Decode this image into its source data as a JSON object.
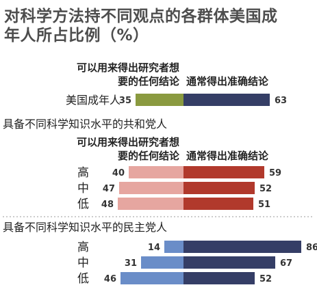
{
  "chart_data": {
    "type": "bar",
    "title_lines": [
      "对科学方法持不同观点的各群体美国成",
      "年人所占比例（%）"
    ],
    "headers": {
      "left_lines": [
        "可以用来得出研究者想",
        "要的任何结论"
      ],
      "right": "通常得出准确结论"
    },
    "groups": [
      {
        "label": "",
        "categories": [
          "美国成年人"
        ],
        "series": [
          {
            "name": "可以用来得出研究者想要的任何结论",
            "values": [
              35
            ]
          },
          {
            "name": "通常得出准确结论",
            "values": [
              63
            ]
          }
        ],
        "colors": {
          "left": "#8a9a40",
          "right": "#353e66"
        }
      },
      {
        "label": "具备不同科学知识水平的共和党人",
        "categories": [
          "高",
          "中",
          "低"
        ],
        "series": [
          {
            "name": "可以用来得出研究者想要的任何结论",
            "values": [
              40,
              47,
              48
            ]
          },
          {
            "name": "通常得出准确结论",
            "values": [
              59,
              52,
              51
            ]
          }
        ],
        "colors": {
          "left": "#e6a6a0",
          "right": "#b1392c"
        }
      },
      {
        "label": "具备不同科学知识水平的民主党人",
        "categories": [
          "高",
          "中",
          "低"
        ],
        "series": [
          {
            "name": "可以用来得出研究者想要的任何结论",
            "values": [
              14,
              31,
              46
            ]
          },
          {
            "name": "通常得出准确结论",
            "values": [
              86,
              67,
              52
            ]
          }
        ],
        "colors": {
          "left": "#6a8dc8",
          "right": "#353e66"
        }
      }
    ]
  }
}
